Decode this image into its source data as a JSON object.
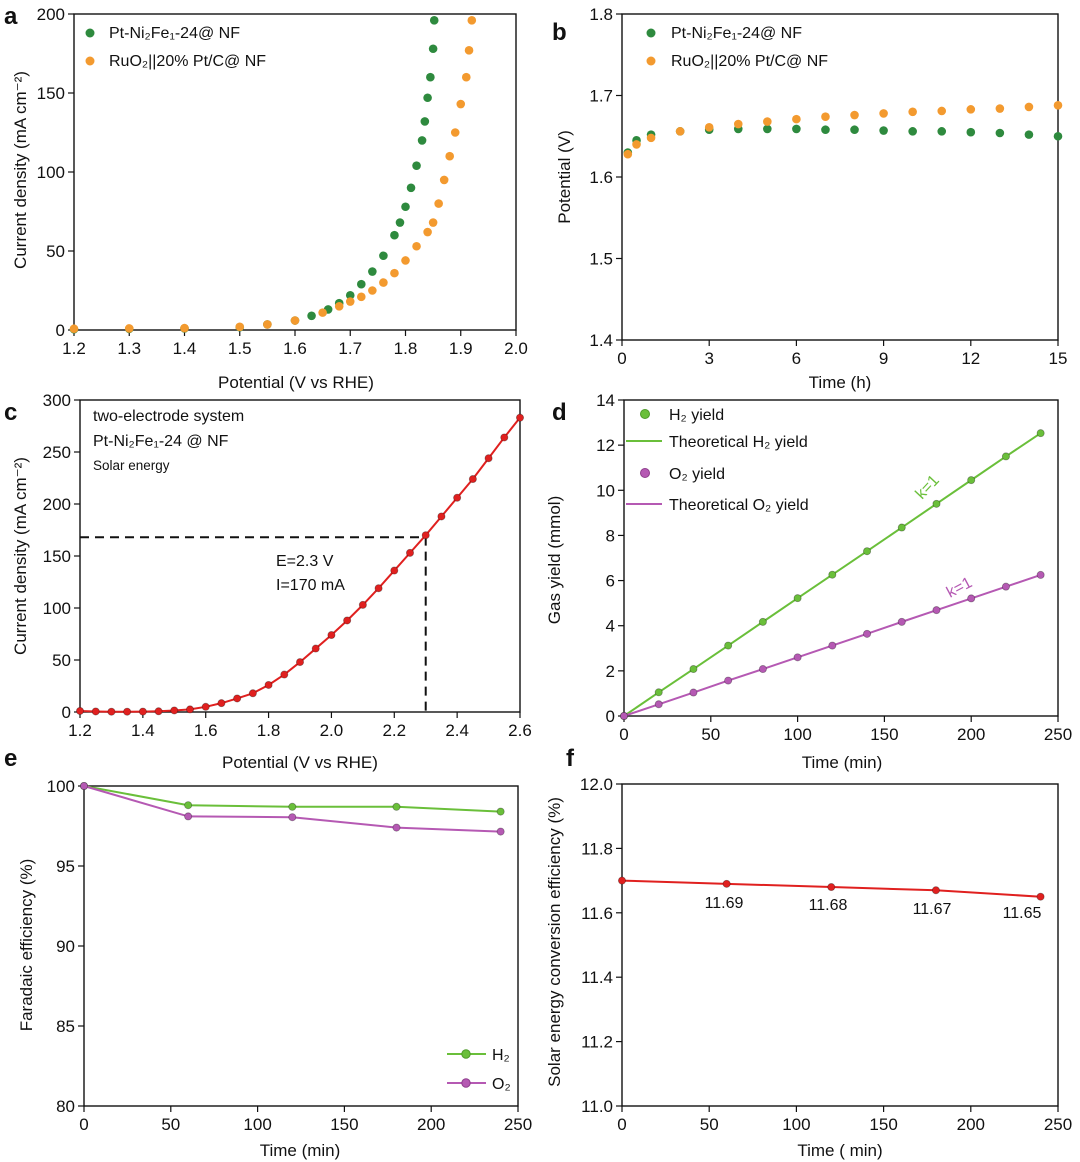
{
  "colors": {
    "green_dark": "#2e8a3e",
    "orange": "#f39a2f",
    "red": "#e0201f",
    "green_light": "#6abf3a",
    "purple": "#b559b3",
    "axis": "#111111"
  },
  "chart_data": [
    {
      "panel": "a",
      "type": "scatter",
      "xlabel": "Potential (V vs RHE)",
      "ylabel": "Current density (mA cm⁻²)",
      "xlim": [
        1.2,
        2.0
      ],
      "ylim": [
        0,
        200
      ],
      "xticks": [
        "1.2",
        "1.3",
        "1.4",
        "1.5",
        "1.6",
        "1.7",
        "1.8",
        "1.9",
        "2.0"
      ],
      "yticks": [
        "0",
        "50",
        "100",
        "150",
        "200"
      ],
      "legend_position": "top-left",
      "series": [
        {
          "name": "Pt-Ni₂Fe₁-24@ NF",
          "color": "#2e8a3e",
          "x": [
            1.2,
            1.3,
            1.4,
            1.5,
            1.55,
            1.6,
            1.63,
            1.66,
            1.68,
            1.7,
            1.72,
            1.74,
            1.76,
            1.78,
            1.79,
            1.8,
            1.81,
            1.82,
            1.83,
            1.835,
            1.84,
            1.845,
            1.85,
            1.852
          ],
          "y": [
            0.5,
            0.7,
            1.0,
            1.8,
            3.5,
            6,
            9,
            13,
            17,
            22,
            29,
            37,
            47,
            60,
            68,
            78,
            90,
            104,
            120,
            132,
            147,
            160,
            178,
            196
          ]
        },
        {
          "name": "RuO₂||20% Pt/C@ NF",
          "color": "#f39a2f",
          "x": [
            1.2,
            1.3,
            1.4,
            1.5,
            1.55,
            1.6,
            1.65,
            1.68,
            1.7,
            1.72,
            1.74,
            1.76,
            1.78,
            1.8,
            1.82,
            1.84,
            1.85,
            1.86,
            1.87,
            1.88,
            1.89,
            1.9,
            1.91,
            1.915,
            1.92
          ],
          "y": [
            0.8,
            1.0,
            1.2,
            2.0,
            3.5,
            6,
            11,
            15,
            18,
            21,
            25,
            30,
            36,
            44,
            53,
            62,
            68,
            80,
            95,
            110,
            125,
            143,
            160,
            177,
            196
          ]
        }
      ]
    },
    {
      "panel": "b",
      "type": "scatter",
      "xlabel": "Time (h)",
      "ylabel": "Potential (V)",
      "xlim": [
        0,
        15
      ],
      "ylim": [
        1.4,
        1.8
      ],
      "xticks": [
        "0",
        "3",
        "6",
        "9",
        "12",
        "15"
      ],
      "yticks": [
        "1.4",
        "1.5",
        "1.6",
        "1.7",
        "1.8"
      ],
      "legend_position": "top-left",
      "series": [
        {
          "name": "Pt-Ni₂Fe₁-24@ NF",
          "color": "#2e8a3e",
          "x": [
            0.2,
            0.5,
            1,
            2,
            3,
            4,
            5,
            6,
            7,
            8,
            9,
            10,
            11,
            12,
            13,
            14,
            15
          ],
          "y": [
            1.63,
            1.645,
            1.652,
            1.656,
            1.658,
            1.659,
            1.659,
            1.659,
            1.658,
            1.658,
            1.657,
            1.656,
            1.656,
            1.655,
            1.654,
            1.652,
            1.65
          ]
        },
        {
          "name": "RuO₂||20% Pt/C@ NF",
          "color": "#f39a2f",
          "x": [
            0.2,
            0.5,
            1,
            2,
            3,
            4,
            5,
            6,
            7,
            8,
            9,
            10,
            11,
            12,
            13,
            14,
            15
          ],
          "y": [
            1.628,
            1.64,
            1.648,
            1.656,
            1.661,
            1.665,
            1.668,
            1.671,
            1.674,
            1.676,
            1.678,
            1.68,
            1.681,
            1.683,
            1.684,
            1.686,
            1.688
          ]
        }
      ]
    },
    {
      "panel": "c",
      "type": "line",
      "xlabel": "Potential (V vs RHE)",
      "ylabel": "Current density (mA cm⁻²)",
      "xlim": [
        1.2,
        2.6
      ],
      "ylim": [
        0,
        300
      ],
      "xticks": [
        "1.2",
        "1.4",
        "1.6",
        "1.8",
        "2.0",
        "2.2",
        "2.4",
        "2.6"
      ],
      "yticks": [
        "0",
        "50",
        "100",
        "150",
        "200",
        "250",
        "300"
      ],
      "annotations": [
        "two-electrode system",
        "Pt-Ni₂Fe₁-24 @ NF",
        "Solar energy",
        "E=2.3 V",
        "I=170 mA"
      ],
      "marker": {
        "x": 2.3,
        "y": 168
      },
      "series": [
        {
          "color": "#e0201f",
          "x": [
            1.2,
            1.25,
            1.3,
            1.35,
            1.4,
            1.45,
            1.5,
            1.55,
            1.6,
            1.65,
            1.7,
            1.75,
            1.8,
            1.85,
            1.9,
            1.95,
            2.0,
            2.05,
            2.1,
            2.15,
            2.2,
            2.25,
            2.3,
            2.35,
            2.4,
            2.45,
            2.5,
            2.55,
            2.6
          ],
          "y": [
            1,
            0.5,
            0.3,
            0.3,
            0.4,
            0.7,
            1.5,
            2.5,
            5,
            8.5,
            13,
            18,
            26,
            36,
            48,
            61,
            74,
            88,
            103,
            119,
            136,
            153,
            170,
            188,
            206,
            224,
            244,
            264,
            283
          ]
        }
      ]
    },
    {
      "panel": "d",
      "type": "line",
      "xlabel": "Time (min)",
      "ylabel": "Gas yield (mmol)",
      "xlim": [
        0,
        250
      ],
      "ylim": [
        0,
        14
      ],
      "xticks": [
        "0",
        "50",
        "100",
        "150",
        "200",
        "250"
      ],
      "yticks": [
        "0",
        "2",
        "4",
        "6",
        "8",
        "10",
        "12",
        "14"
      ],
      "legend_position": "top-left",
      "annotations": [
        "k=1",
        "k=1"
      ],
      "series": [
        {
          "name": "H₂ yield",
          "theoretical_name": "Theoretical H₂ yield",
          "color": "#6abf3a",
          "x": [
            0,
            20,
            40,
            60,
            80,
            100,
            120,
            140,
            160,
            180,
            200,
            220,
            240
          ],
          "y": [
            0,
            1.05,
            2.08,
            3.12,
            4.17,
            5.22,
            6.26,
            7.3,
            8.35,
            9.4,
            10.45,
            11.5,
            12.53
          ]
        },
        {
          "name": "O₂ yield",
          "theoretical_name": "Theoretical O₂ yield",
          "color": "#b559b3",
          "x": [
            0,
            20,
            40,
            60,
            80,
            100,
            120,
            140,
            160,
            180,
            200,
            220,
            240
          ],
          "y": [
            0,
            0.52,
            1.04,
            1.57,
            2.08,
            2.6,
            3.12,
            3.64,
            4.17,
            4.69,
            5.21,
            5.73,
            6.25
          ]
        }
      ]
    },
    {
      "panel": "e",
      "type": "line",
      "xlabel": "Time (min)",
      "ylabel": "Faradaic efficiency (%)",
      "xlim": [
        0,
        250
      ],
      "ylim": [
        80,
        100
      ],
      "xticks": [
        "0",
        "50",
        "100",
        "150",
        "200",
        "250"
      ],
      "yticks": [
        "80",
        "85",
        "90",
        "95",
        "100"
      ],
      "legend_position": "bottom-right",
      "series": [
        {
          "name": "H₂",
          "color": "#6abf3a",
          "x": [
            0,
            60,
            120,
            180,
            240
          ],
          "y": [
            100,
            98.8,
            98.7,
            98.7,
            98.4
          ]
        },
        {
          "name": "O₂",
          "color": "#b559b3",
          "x": [
            0,
            60,
            120,
            180,
            240
          ],
          "y": [
            100,
            98.1,
            98.05,
            97.4,
            97.15
          ]
        }
      ]
    },
    {
      "panel": "f",
      "type": "line",
      "xlabel": "Time ( min)",
      "ylabel": "Solar energy conversion efficiency (%)",
      "xlim": [
        0,
        250
      ],
      "ylim": [
        11.0,
        12.0
      ],
      "xticks": [
        "0",
        "50",
        "100",
        "150",
        "200",
        "250"
      ],
      "yticks": [
        "11.0",
        "11.2",
        "11.4",
        "11.6",
        "11.8",
        "12.0"
      ],
      "data_labels": [
        "11.69",
        "11.68",
        "11.67",
        "11.65"
      ],
      "series": [
        {
          "color": "#e0201f",
          "x": [
            0,
            60,
            120,
            180,
            240
          ],
          "y": [
            11.7,
            11.69,
            11.68,
            11.67,
            11.65
          ]
        }
      ]
    }
  ]
}
